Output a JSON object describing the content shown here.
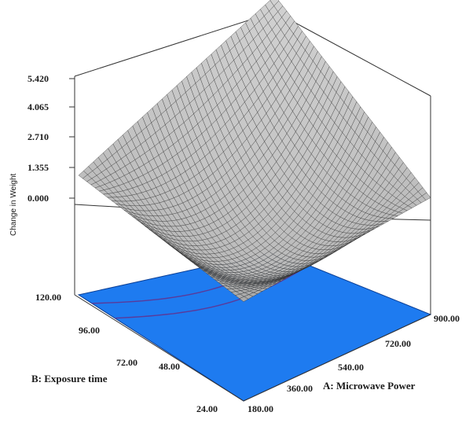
{
  "chart_data": {
    "type": "surface",
    "zlabel": "Change in Weight",
    "xlabel": "A: Microwave Power",
    "ylabel": "B: Exposure time",
    "z_ticks": [
      "0.000",
      "1.355",
      "2.710",
      "4.065",
      "5.420"
    ],
    "x_ticks": [
      "180.00",
      "360.00",
      "540.00",
      "720.00",
      "900.00"
    ],
    "y_ticks": [
      "24.00",
      "48.00",
      "72.00",
      "96.00",
      "120.00"
    ],
    "xlim": [
      180,
      900
    ],
    "ylim": [
      24,
      120
    ],
    "zlim": [
      0,
      5.42
    ],
    "corner_values": [
      {
        "x": 180,
        "y": 24,
        "z": 0.3
      },
      {
        "x": 900,
        "y": 24,
        "z": 0.95
      },
      {
        "x": 180,
        "y": 120,
        "z": 1.05
      },
      {
        "x": 900,
        "y": 120,
        "z": 6.1
      }
    ],
    "surface_min": {
      "x": 360,
      "y": 48,
      "z": -0.6
    },
    "floor_color": "#1e7bf0",
    "surface_color": "#bdbdbd",
    "mesh_color": "#2b2b2b",
    "contour_color": "#5a3a9a"
  }
}
